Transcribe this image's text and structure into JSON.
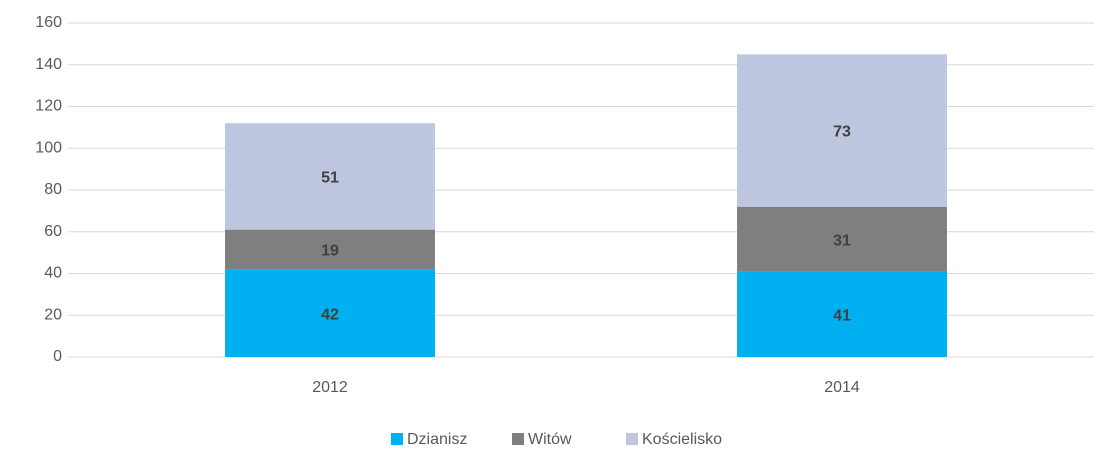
{
  "chart_data": {
    "type": "stacked_bar",
    "categories": [
      "2012",
      "2014"
    ],
    "series": [
      {
        "name": "Dzianisz",
        "color": "#00b0f0",
        "values": [
          42,
          41
        ]
      },
      {
        "name": "Witów",
        "color": "#7f7f7f",
        "values": [
          19,
          31
        ]
      },
      {
        "name": "Kościelisko",
        "color": "#bec6e0",
        "values": [
          51,
          73
        ]
      }
    ],
    "ylim": [
      0,
      160
    ],
    "yticks": [
      0,
      20,
      40,
      60,
      80,
      100,
      120,
      140,
      160
    ],
    "grid": true,
    "legend": "bottom"
  }
}
